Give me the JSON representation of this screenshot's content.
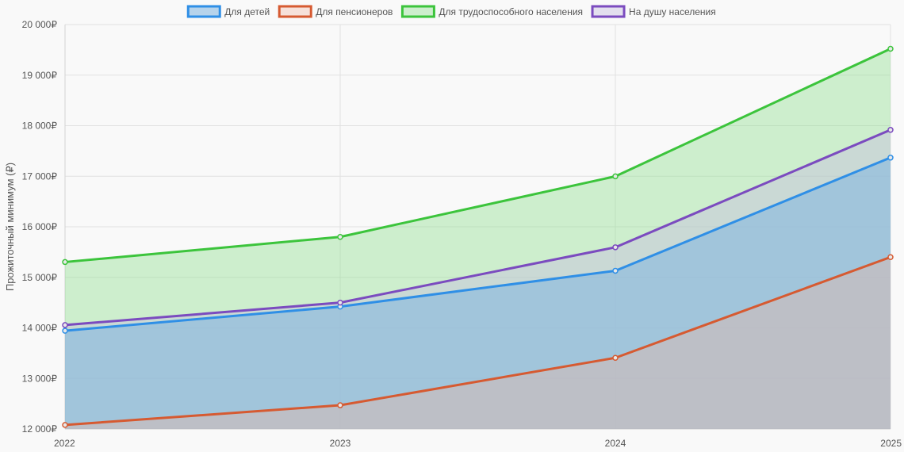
{
  "chart_data": {
    "type": "area",
    "x": [
      "2022",
      "2023",
      "2024",
      "2025"
    ],
    "ylabel": "Прожиточный минимум (₽)",
    "ylim": [
      12000,
      20000
    ],
    "ytick_step": 1000,
    "ytick_suffix": "₽",
    "ytick_labels": [
      "12 000₽",
      "13 000₽",
      "14 000₽",
      "15 000₽",
      "16 000₽",
      "17 000₽",
      "18 000₽",
      "19 000₽",
      "20 000₽"
    ],
    "grid": true,
    "legend_position": "top",
    "series": [
      {
        "name": "Для детей",
        "values": [
          13944,
          14422,
          15130,
          17368
        ],
        "color": "#2f8fe6",
        "fill": "rgba(127,181,224,0.55)"
      },
      {
        "name": "Для пенсионеров",
        "values": [
          12080,
          12470,
          13408,
          15400
        ],
        "color": "#d65a31",
        "fill": "rgba(240,180,160,0.35)"
      },
      {
        "name": "Для трудоспособного населения",
        "values": [
          15303,
          15800,
          16998,
          19522
        ],
        "color": "#3cc43c",
        "fill": "rgba(150,225,150,0.45)"
      },
      {
        "name": "На душу населения",
        "values": [
          14056,
          14500,
          15595,
          17917
        ],
        "color": "#7b4bbf",
        "fill": "rgba(200,190,225,0.45)"
      }
    ]
  }
}
